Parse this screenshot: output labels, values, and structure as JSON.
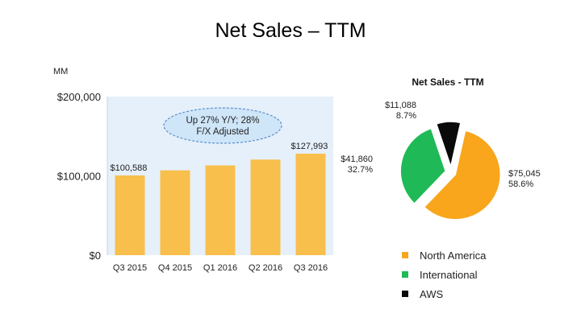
{
  "page": {
    "title": "Net Sales – TTM"
  },
  "chart_data": [
    {
      "type": "bar",
      "units_label": "MM",
      "categories": [
        "Q3 2015",
        "Q4 2015",
        "Q1 2016",
        "Q2 2016",
        "Q3 2016"
      ],
      "values": [
        100588,
        107006,
        113183,
        120600,
        127993
      ],
      "data_labels": [
        "$100,588",
        "",
        "",
        "",
        "$127,993"
      ],
      "ylim": [
        0,
        200000
      ],
      "yticks": [
        0,
        100000,
        200000
      ],
      "ytick_labels": [
        "$0",
        "$100,000",
        "$200,000"
      ],
      "annotation": "Up 27% Y/Y; 28% F/X Adjusted",
      "annotation_lines": [
        "Up 27% Y/Y; 28%",
        "F/X Adjusted"
      ],
      "colors": {
        "bar": "#F8BF4C",
        "plot_bg": "#E6F0FA",
        "callout_bg": "#CFE5F8",
        "callout_border": "#5B8FC9"
      }
    },
    {
      "type": "pie",
      "title": "Net Sales - TTM",
      "slices": [
        {
          "name": "North America",
          "value": 75045,
          "value_label": "$75,045",
          "percent_label": "58.6%",
          "color": "#F9A61C"
        },
        {
          "name": "International",
          "value": 41860,
          "value_label": "$41,860",
          "percent_label": "32.7%",
          "color": "#1FBA57"
        },
        {
          "name": "AWS",
          "value": 11088,
          "value_label": "$11,088",
          "percent_label": "8.7%",
          "color": "#0A0A0A"
        }
      ]
    }
  ]
}
